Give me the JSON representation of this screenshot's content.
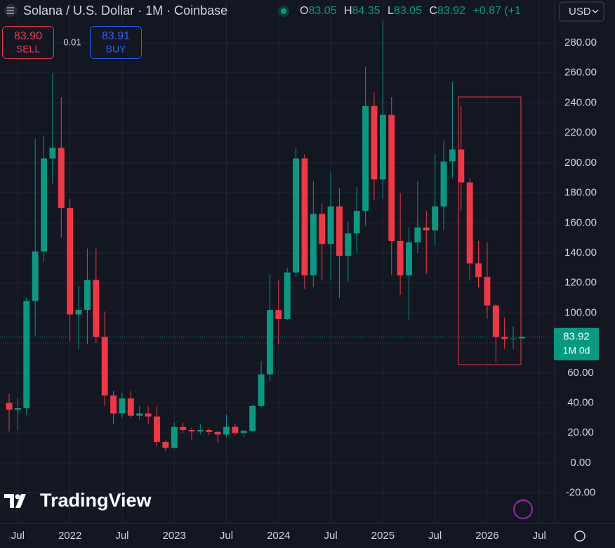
{
  "chart_data": {
    "type": "candlestick",
    "title": "Solana / U.S. Dollar · 1M · Coinbase",
    "ohlc_letters": [
      "O",
      "H",
      "L",
      "C"
    ],
    "ohlc_values": [
      83.05,
      84.35,
      83.05,
      83.92
    ],
    "change": "+0.87 (+1",
    "sell_price": "83.90",
    "sell_label": "SELL",
    "spread": 0.01,
    "buy_price": 83.91,
    "buy_label": "BUY",
    "currency": "USD",
    "brand": "TradingView",
    "up_color": "#089981",
    "down_color": "#f23645",
    "open": [
      40,
      35.5,
      36.5,
      108,
      141,
      203,
      210,
      170,
      99,
      102,
      122,
      84,
      45,
      33,
      43,
      31.5,
      33,
      31,
      14,
      10,
      24,
      22,
      21,
      22,
      20.7,
      19,
      24,
      20,
      21.4,
      38,
      59,
      102,
      96,
      127,
      203,
      125,
      166,
      146,
      171,
      138,
      153,
      168,
      238,
      189,
      232,
      148,
      125,
      147,
      157,
      155,
      171,
      201,
      209,
      187,
      133,
      124,
      105,
      84,
      82.6,
      83.05
    ],
    "high": [
      46,
      43,
      110,
      216,
      218,
      260,
      244,
      176,
      118,
      143,
      143,
      101,
      48,
      47,
      48,
      38,
      38,
      38,
      15,
      27,
      27,
      23.5,
      26,
      23,
      21,
      32,
      26,
      22,
      39,
      68,
      126,
      122,
      130,
      210,
      206,
      188,
      173,
      194,
      183,
      161,
      184,
      264,
      247,
      295,
      244,
      180,
      157,
      188,
      168,
      206,
      215,
      254,
      238,
      190,
      148,
      147,
      106,
      97,
      91,
      84.35
    ],
    "low": [
      21,
      22,
      32,
      85,
      134,
      186,
      150,
      81,
      76,
      79,
      80,
      38,
      26,
      30,
      30,
      29,
      26,
      11,
      8,
      9.6,
      19.8,
      15.5,
      19,
      18.6,
      13.6,
      17.5,
      18.6,
      17,
      21,
      37,
      54,
      79,
      95,
      124,
      116,
      117,
      122,
      122,
      110,
      121,
      140,
      158,
      175,
      176,
      125,
      112,
      95,
      140,
      126,
      145,
      155,
      190,
      168,
      122,
      117,
      96,
      67,
      76,
      76,
      83.05
    ],
    "close": [
      35.5,
      36.5,
      108,
      141,
      203,
      210,
      170,
      99,
      102,
      122,
      84,
      45,
      33,
      43,
      31.5,
      33,
      31,
      14,
      10,
      24,
      22,
      21,
      22,
      20.7,
      19,
      24,
      20,
      21.4,
      38,
      59,
      102,
      96,
      127,
      203,
      125,
      166,
      146,
      171,
      138,
      153,
      168,
      238,
      189,
      232,
      148,
      125,
      147,
      157,
      155,
      171,
      201,
      209,
      187,
      133,
      124,
      105,
      84,
      82.6,
      83.05,
      83.92
    ],
    "last_price": 83.92,
    "last_price_countdown": "1M 0d",
    "xlim": [
      -1.05,
      62.76
    ],
    "xticks": [
      {
        "value": 1,
        "label": "Jul"
      },
      {
        "value": 7,
        "label": "2022"
      },
      {
        "value": 13,
        "label": "Jul"
      },
      {
        "value": 19,
        "label": "2023"
      },
      {
        "value": 25,
        "label": "Jul"
      },
      {
        "value": 31,
        "label": "2024"
      },
      {
        "value": 37,
        "label": "Jul"
      },
      {
        "value": 43,
        "label": "2025"
      },
      {
        "value": 49,
        "label": "Jul"
      },
      {
        "value": 55,
        "label": "2026"
      },
      {
        "value": 61,
        "label": "Jul"
      }
    ],
    "ylim": [
      -40.3,
      308.6
    ],
    "yticks": [
      {
        "value": -20,
        "label": "-20.00"
      },
      {
        "value": 0,
        "label": "0.00"
      },
      {
        "value": 20,
        "label": "20.00"
      },
      {
        "value": 40,
        "label": "40.00"
      },
      {
        "value": 60,
        "label": "60.00"
      },
      {
        "value": 80,
        "label": "80.00"
      },
      {
        "value": 100,
        "label": "100.00"
      },
      {
        "value": 120,
        "label": "120.00"
      },
      {
        "value": 140,
        "label": "140.00"
      },
      {
        "value": 160,
        "label": "160.00"
      },
      {
        "value": 180,
        "label": "180.00"
      },
      {
        "value": 200,
        "label": "200.00"
      },
      {
        "value": 220,
        "label": "220.00"
      },
      {
        "value": 240,
        "label": "240.00"
      },
      {
        "value": 260,
        "label": "260.00"
      },
      {
        "value": 280,
        "label": "280.00"
      }
    ],
    "grid": true
  }
}
